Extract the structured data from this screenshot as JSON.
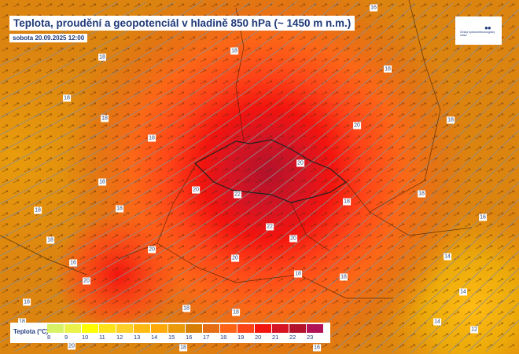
{
  "header": {
    "title": "Teplota, proudění a geopotenciál v hladině 850 hPa (~ 1450 m n.m.)",
    "date": "sobota 20.09.2025 12:00"
  },
  "logo": {
    "mark": "●●",
    "text": "Český hydrometeorologický ústav"
  },
  "legend": {
    "title": "Teplota (°C)",
    "values": [
      "8",
      "9",
      "10",
      "11",
      "12",
      "13",
      "14",
      "15",
      "16",
      "17",
      "18",
      "19",
      "20",
      "21",
      "22",
      "23"
    ],
    "colors": [
      "#d8f266",
      "#ebf24a",
      "#ffff00",
      "#ffe31a",
      "#ffcf2a",
      "#ffbb14",
      "#ffaa0a",
      "#eb9a0a",
      "#d77f05",
      "#e56d14",
      "#ff6318",
      "#ff4418",
      "#f2140f",
      "#d61423",
      "#b3122b",
      "#b01456"
    ]
  },
  "contour_labels": [
    "18",
    "18",
    "18",
    "18",
    "18",
    "18",
    "18",
    "18",
    "18",
    "18",
    "16",
    "18",
    "18",
    "18",
    "18",
    "18",
    "18",
    "18",
    "18",
    "18",
    "18",
    "20",
    "20",
    "22",
    "22",
    "20",
    "20",
    "20",
    "20",
    "20",
    "16",
    "14",
    "14",
    "14",
    "12",
    "16",
    "16",
    "20"
  ]
}
